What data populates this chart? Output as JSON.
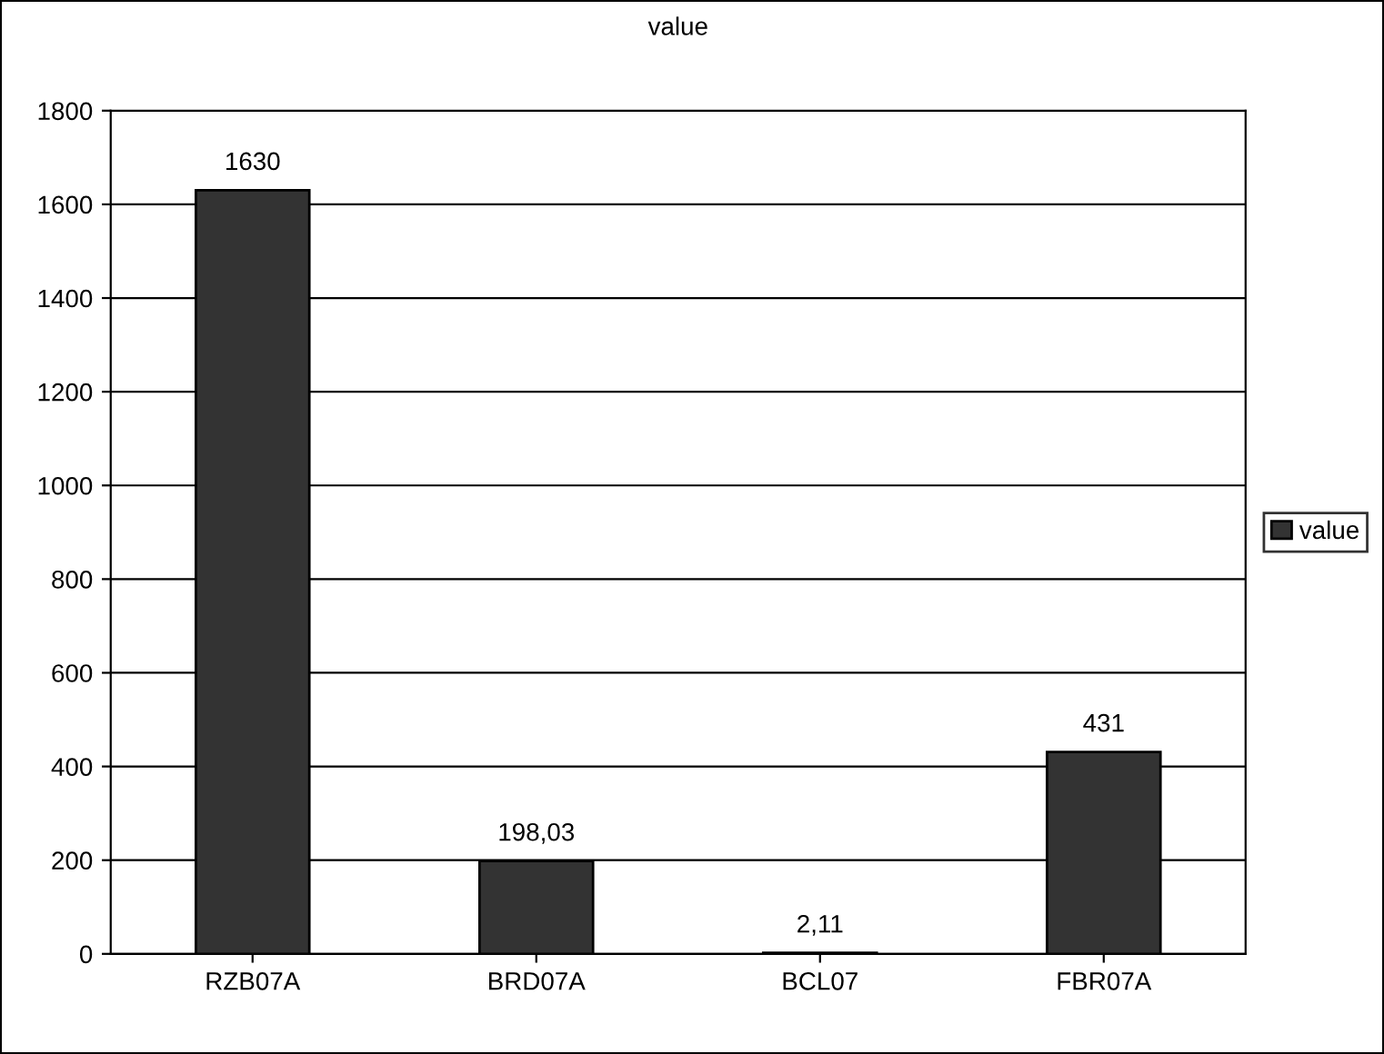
{
  "chart_data": {
    "type": "bar",
    "title": "value",
    "categories": [
      "RZB07A",
      "BRD07A",
      "BCL07",
      "FBR07A"
    ],
    "series": [
      {
        "name": "value",
        "color": "#333333",
        "values": [
          1630,
          198.03,
          2.11,
          431
        ],
        "value_labels": [
          "1630",
          "198,03",
          "2,11",
          "431"
        ]
      }
    ],
    "ylim": [
      0,
      1800
    ],
    "yticks": [
      0,
      200,
      400,
      600,
      800,
      1000,
      1200,
      1400,
      1600,
      1800
    ],
    "grid": "y",
    "legend": "right"
  }
}
